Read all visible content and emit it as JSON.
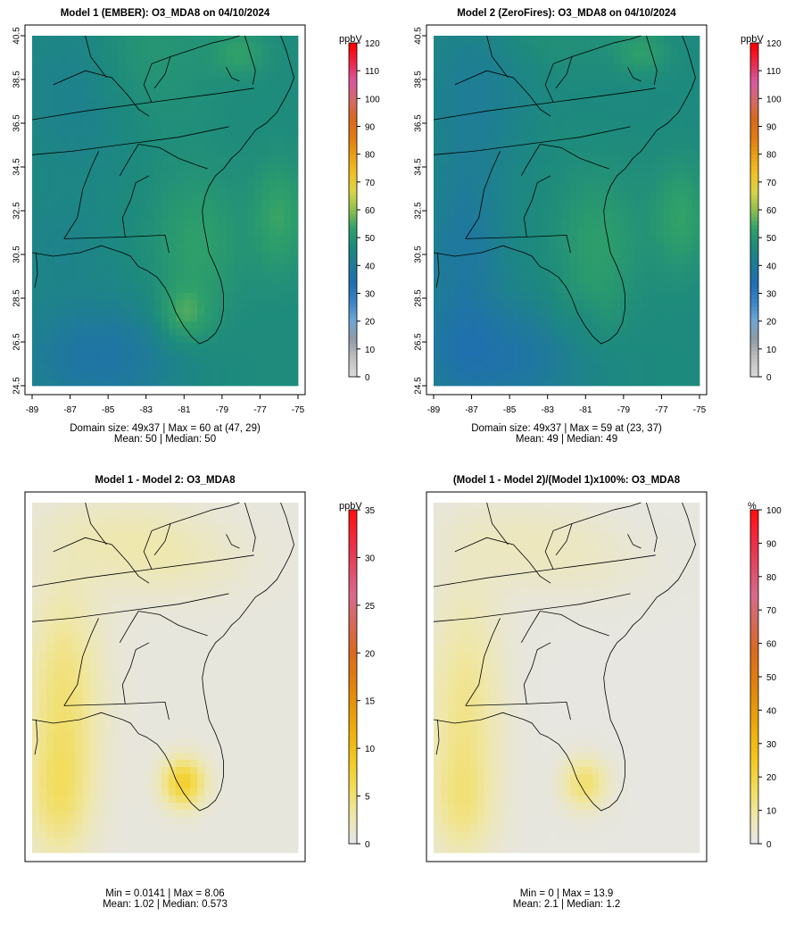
{
  "colors": {
    "seq_stops": [
      "#d9d9d9",
      "#bdbdbd",
      "#8e9aa6",
      "#6fa6d6",
      "#3a84c4",
      "#1f6fb0",
      "#1f7a9a",
      "#1d8a7d",
      "#2fa06a",
      "#8cbf4e",
      "#d9d447",
      "#f2c125",
      "#e8a015",
      "#e07a12",
      "#d8691e",
      "#d36a6a",
      "#d65aa0",
      "#ea2a4d",
      "#ff0000"
    ],
    "diff_stops": [
      "#e6e6e6",
      "#efe7a8",
      "#f2dc58",
      "#f4c81f",
      "#eeb00d",
      "#e69508",
      "#de7c10",
      "#d96a22",
      "#d46a5a",
      "#d86a8c",
      "#e04a66",
      "#f02a40",
      "#ff1010"
    ],
    "map_line": "#000000"
  },
  "chart_data": [
    {
      "type": "heatmap",
      "title": "Model 1 (EMBER): O3_MDA8 on 04/10/2024",
      "x_ticks": [
        "-89",
        "-87",
        "-85",
        "-83",
        "-81",
        "-79",
        "-77",
        "-75"
      ],
      "y_ticks": [
        "24.5",
        "26.5",
        "28.5",
        "30.5",
        "32.5",
        "34.5",
        "36.5",
        "38.5",
        "40.5"
      ],
      "xlim": [
        -89,
        -75
      ],
      "ylim": [
        24.5,
        40.5
      ],
      "legend_title": "ppbV",
      "legend_range": [
        0,
        120
      ],
      "legend_ticks": [
        "0",
        "10",
        "20",
        "30",
        "40",
        "50",
        "60",
        "70",
        "80",
        "90",
        "100",
        "110",
        "120"
      ],
      "field": "model1",
      "stats_line1": "Domain size: 49x37 | Max = 60 at (47, 29)",
      "stats_line2": "Mean: 50 |  Median: 50",
      "min": 34,
      "max": 60,
      "mean": 50,
      "median": 50
    },
    {
      "type": "heatmap",
      "title": "Model 2 (ZeroFires): O3_MDA8 on 04/10/2024",
      "x_ticks": [
        "-89",
        "-87",
        "-85",
        "-83",
        "-81",
        "-79",
        "-77",
        "-75"
      ],
      "y_ticks": [
        "24.5",
        "26.5",
        "28.5",
        "30.5",
        "32.5",
        "34.5",
        "36.5",
        "38.5",
        "40.5"
      ],
      "xlim": [
        -89,
        -75
      ],
      "ylim": [
        24.5,
        40.5
      ],
      "legend_title": "ppbV",
      "legend_range": [
        0,
        120
      ],
      "legend_ticks": [
        "0",
        "10",
        "20",
        "30",
        "40",
        "50",
        "60",
        "70",
        "80",
        "90",
        "100",
        "110",
        "120"
      ],
      "field": "model2",
      "stats_line1": "Domain size: 49x37 | Max = 59 at (23, 37)",
      "stats_line2": "Mean: 49 |  Median: 49",
      "min": 34,
      "max": 59,
      "mean": 49,
      "median": 49
    },
    {
      "type": "heatmap",
      "title": "Model 1 - Model 2: O3_MDA8",
      "legend_title": "ppbV",
      "legend_range": [
        0,
        35
      ],
      "legend_ticks": [
        "0",
        "5",
        "10",
        "15",
        "20",
        "25",
        "30",
        "35"
      ],
      "field": "diff",
      "stats_line1": "Min = 0.0141 | Max = 8.06",
      "stats_line2": "Mean: 1.02 |  Median: 0.573",
      "min": 0.0141,
      "max": 8.06,
      "mean": 1.02,
      "median": 0.573
    },
    {
      "type": "heatmap",
      "title": "(Model 1 - Model 2)/(Model 1)x100%: O3_MDA8",
      "legend_title": "%",
      "legend_range": [
        0,
        100
      ],
      "legend_ticks": [
        "0",
        "10",
        "20",
        "30",
        "40",
        "50",
        "60",
        "70",
        "80",
        "90",
        "100"
      ],
      "field": "pct",
      "stats_line1": "Min = 0 | Max = 13.9",
      "stats_line2": "Mean: 2.1 |  Median: 1.2",
      "min": 0,
      "max": 13.9,
      "mean": 2.1,
      "median": 1.2
    }
  ]
}
